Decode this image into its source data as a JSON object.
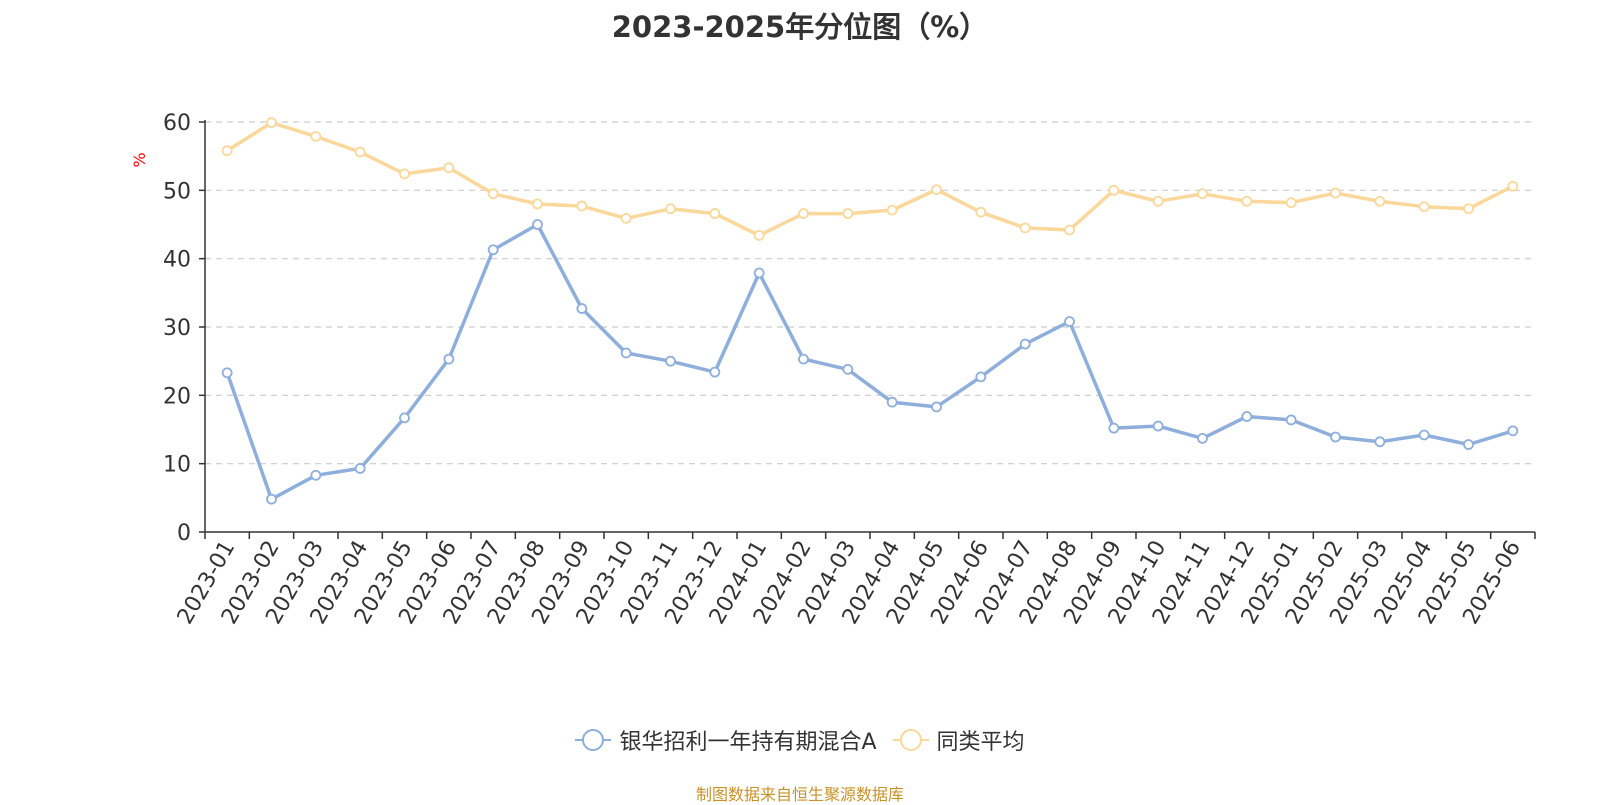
{
  "chart_data": {
    "type": "line",
    "title": "2023-2025年分位图（%）",
    "ylabel": "%",
    "xlabel": "",
    "ylim": [
      0,
      60
    ],
    "yticks": [
      0,
      10,
      20,
      30,
      40,
      50,
      60
    ],
    "grid": true,
    "legend_position": "bottom",
    "categories": [
      "2023-01",
      "2023-02",
      "2023-03",
      "2023-04",
      "2023-05",
      "2023-06",
      "2023-07",
      "2023-08",
      "2023-09",
      "2023-10",
      "2023-11",
      "2023-12",
      "2024-01",
      "2024-02",
      "2024-03",
      "2024-04",
      "2024-05",
      "2024-06",
      "2024-07",
      "2024-08",
      "2024-09",
      "2024-10",
      "2024-11",
      "2024-12",
      "2025-01",
      "2025-02",
      "2025-03",
      "2025-04",
      "2025-05",
      "2025-06"
    ],
    "series": [
      {
        "name": "银华招利一年持有期混合A",
        "color": "#8eaedb",
        "values": [
          23.3,
          4.8,
          8.3,
          9.3,
          16.7,
          25.3,
          41.3,
          45.0,
          32.7,
          26.2,
          25.0,
          23.4,
          37.9,
          25.3,
          23.8,
          19.0,
          18.3,
          22.7,
          27.5,
          30.8,
          15.2,
          15.5,
          13.7,
          16.9,
          16.4,
          13.9,
          13.2,
          14.2,
          12.8,
          14.8
        ]
      },
      {
        "name": "同类平均",
        "color": "#fad79a",
        "values": [
          55.8,
          59.9,
          57.9,
          55.6,
          52.4,
          53.3,
          49.5,
          48.0,
          47.7,
          45.9,
          47.3,
          46.6,
          43.4,
          46.6,
          46.6,
          47.1,
          50.1,
          46.8,
          44.5,
          44.2,
          50.0,
          48.4,
          49.5,
          48.4,
          48.2,
          49.6,
          48.4,
          47.6,
          47.3,
          50.6
        ]
      }
    ]
  },
  "source_note": "制图数据来自恒生聚源数据库",
  "colors": {
    "axis": "#333333",
    "grid": "#cccccc",
    "ylabel": "#ff0000",
    "source": "#c8922a"
  }
}
